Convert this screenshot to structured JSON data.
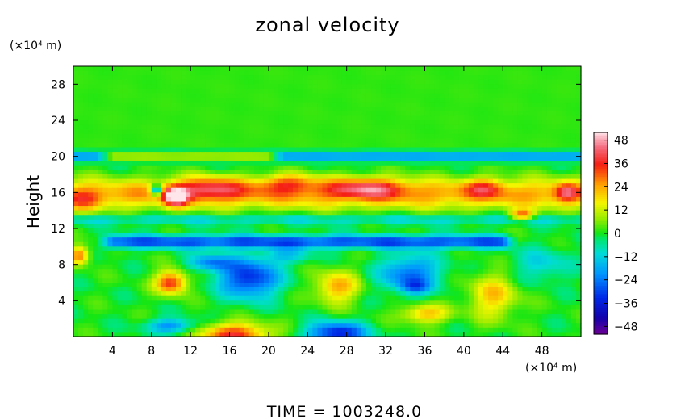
{
  "chart_data": {
    "type": "heatmap",
    "title": "zonal velocity",
    "ylabel": "Height",
    "y_unit_label": "(×10⁴ m)",
    "x_unit_label": "(×10⁴ m)",
    "xlim": [
      0,
      52
    ],
    "ylim": [
      0,
      30
    ],
    "x_ticks": [
      "4",
      "8",
      "12",
      "16",
      "20",
      "24",
      "28",
      "32",
      "36",
      "40",
      "44",
      "48"
    ],
    "y_ticks": [
      "4",
      "8",
      "12",
      "16",
      "20",
      "24",
      "28"
    ],
    "x_tick_values": [
      4,
      8,
      12,
      16,
      20,
      24,
      28,
      32,
      36,
      40,
      44,
      48
    ],
    "y_tick_values": [
      4,
      8,
      12,
      16,
      20,
      24,
      28
    ],
    "colorbar": {
      "range": [
        -52,
        52
      ],
      "ticks": [
        "48",
        "36",
        "24",
        "12",
        "0",
        "−12",
        "−24",
        "−36",
        "−48"
      ],
      "tick_values": [
        48,
        36,
        24,
        12,
        0,
        -12,
        -24,
        -36,
        -48
      ]
    },
    "field_features": [
      {
        "kind": "band",
        "y": 20.0,
        "half_width": 0.5,
        "amp": -22
      },
      {
        "kind": "band",
        "y": 20.0,
        "half_width": 0.35,
        "amp": 40,
        "x_from": 4,
        "x_to": 20
      },
      {
        "kind": "band",
        "y": 10.5,
        "half_width": 0.7,
        "amp": -30,
        "x_from": 4,
        "x_to": 44
      },
      {
        "kind": "band",
        "y": 13.0,
        "half_width": 0.6,
        "amp": -10
      },
      {
        "kind": "band",
        "y": 15.8,
        "half_width": 1.6,
        "amp": 24,
        "x_from": 0,
        "x_to": 52
      },
      {
        "kind": "blob",
        "x": 14,
        "y": 16.5,
        "sx": 3.5,
        "sy": 1.2,
        "amp": 24
      },
      {
        "kind": "blob",
        "x": 10.5,
        "y": 15.5,
        "sx": 1.2,
        "sy": 1.0,
        "amp": 40
      },
      {
        "kind": "blob",
        "x": 8.5,
        "y": 16.2,
        "sx": 0.6,
        "sy": 0.6,
        "amp": -40
      },
      {
        "kind": "blob",
        "x": 22,
        "y": 17,
        "sx": 3,
        "sy": 1,
        "amp": 20
      },
      {
        "kind": "blob",
        "x": 30,
        "y": 16.5,
        "sx": 4,
        "sy": 1.1,
        "amp": 26
      },
      {
        "kind": "blob",
        "x": 42,
        "y": 16.5,
        "sx": 2,
        "sy": 1,
        "amp": 18
      },
      {
        "kind": "blob",
        "x": 46,
        "y": 13.5,
        "sx": 1.2,
        "sy": 0.6,
        "amp": 30
      },
      {
        "kind": "blob",
        "x": 18,
        "y": 6.5,
        "sx": 3,
        "sy": 2.2,
        "amp": -34
      },
      {
        "kind": "blob",
        "x": 14,
        "y": 8.2,
        "sx": 2.2,
        "sy": 0.9,
        "amp": -22
      },
      {
        "kind": "blob",
        "x": 34.5,
        "y": 7,
        "sx": 3,
        "sy": 2,
        "amp": -26
      },
      {
        "kind": "blob",
        "x": 35,
        "y": 5.5,
        "sx": 1.5,
        "sy": 0.8,
        "amp": -16
      },
      {
        "kind": "blob",
        "x": 10,
        "y": 6,
        "sx": 1.6,
        "sy": 1.3,
        "amp": 36
      },
      {
        "kind": "blob",
        "x": 27,
        "y": 5.5,
        "sx": 2.2,
        "sy": 1.8,
        "amp": 24
      },
      {
        "kind": "blob",
        "x": 43,
        "y": 4.5,
        "sx": 2.5,
        "sy": 2.5,
        "amp": 20
      },
      {
        "kind": "blob",
        "x": 16.5,
        "y": 0.2,
        "sx": 3.5,
        "sy": 1.3,
        "amp": 36
      },
      {
        "kind": "blob",
        "x": 27,
        "y": 0.4,
        "sx": 3,
        "sy": 1.2,
        "amp": -36
      },
      {
        "kind": "blob",
        "x": 36,
        "y": 2.5,
        "sx": 2.5,
        "sy": 1,
        "amp": 22
      },
      {
        "kind": "blob",
        "x": 10,
        "y": 1.2,
        "sx": 2.5,
        "sy": 0.8,
        "amp": -22
      },
      {
        "kind": "blob",
        "x": 0.6,
        "y": 9,
        "sx": 1,
        "sy": 1,
        "amp": 30
      },
      {
        "kind": "blob",
        "x": 48,
        "y": 8,
        "sx": 3,
        "sy": 1.8,
        "amp": -12
      },
      {
        "kind": "blob",
        "x": 22,
        "y": 9,
        "sx": 2.5,
        "sy": 0.9,
        "amp": -12
      },
      {
        "kind": "blob",
        "x": 1,
        "y": 15,
        "sx": 2,
        "sy": 1.2,
        "amp": 14
      },
      {
        "kind": "blob",
        "x": 50.5,
        "y": 16,
        "sx": 1.2,
        "sy": 1,
        "amp": 22
      }
    ]
  },
  "footer": {
    "time_label": "TIME = 1003248.0"
  }
}
